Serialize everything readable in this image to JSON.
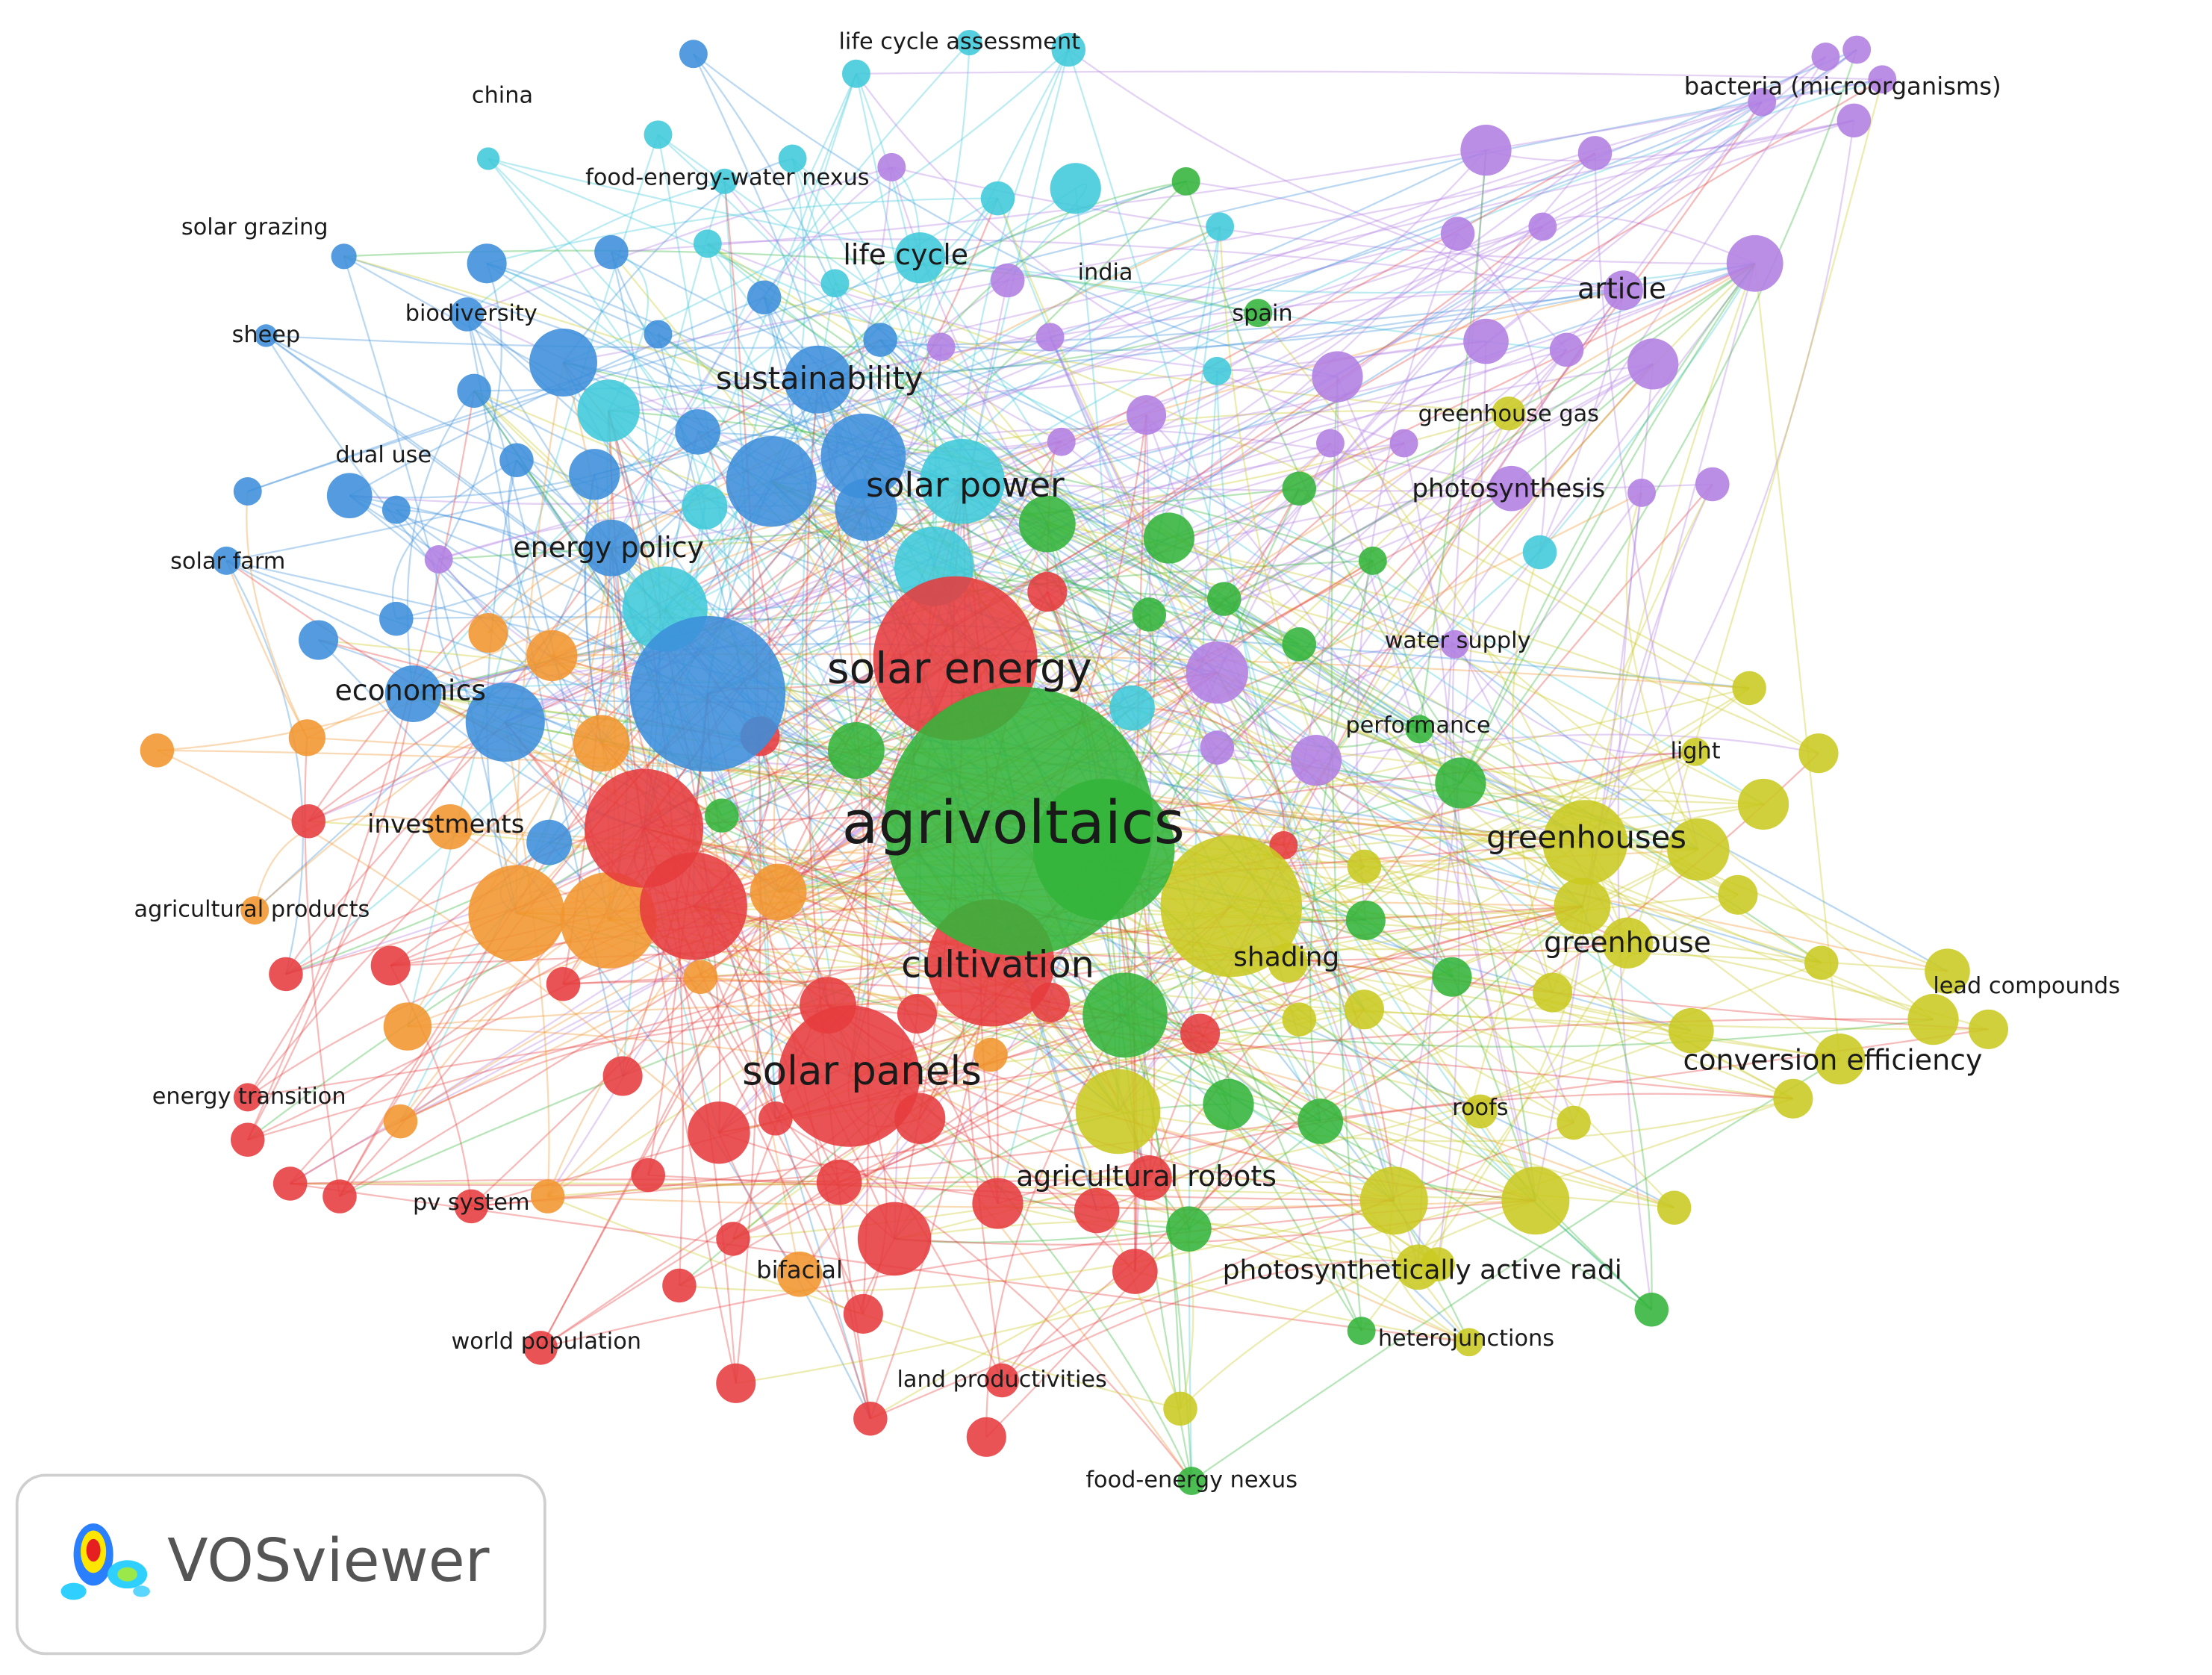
{
  "nodes": [
    {
      "label": "life cycle assessment"
    },
    {
      "label": "china"
    },
    {
      "label": "bacteria (microorganisms)"
    },
    {
      "label": "food-energy-water nexus"
    },
    {
      "label": "solar grazing"
    },
    {
      "label": "life cycle"
    },
    {
      "label": "india"
    },
    {
      "label": "article"
    },
    {
      "label": "spain"
    },
    {
      "label": "sheep"
    },
    {
      "label": "biodiversity"
    },
    {
      "label": "sustainability"
    },
    {
      "label": "greenhouse gas"
    },
    {
      "label": "dual use"
    },
    {
      "label": "solar power"
    },
    {
      "label": "photosynthesis"
    },
    {
      "label": "solar farm"
    },
    {
      "label": "energy policy"
    },
    {
      "label": "solar energy"
    },
    {
      "label": "water supply"
    },
    {
      "label": "economics"
    },
    {
      "label": "performance"
    },
    {
      "label": "light"
    },
    {
      "label": "agrivoltaics"
    },
    {
      "label": "investments"
    },
    {
      "label": "greenhouses"
    },
    {
      "label": "agricultural products"
    },
    {
      "label": "greenhouse"
    },
    {
      "label": "cultivation"
    },
    {
      "label": "shading"
    },
    {
      "label": "lead compounds"
    },
    {
      "label": "conversion efficiency"
    },
    {
      "label": "solar panels"
    },
    {
      "label": "energy transition"
    },
    {
      "label": "roofs"
    },
    {
      "label": "agricultural robots"
    },
    {
      "label": "pv system"
    },
    {
      "label": "photosynthetically active radi"
    },
    {
      "label": "bifacial"
    },
    {
      "label": "heterojunctions"
    },
    {
      "label": "world population"
    },
    {
      "label": "land productivities"
    },
    {
      "label": "food-energy nexus"
    }
  ],
  "logo": {
    "text": "VOSviewer"
  }
}
